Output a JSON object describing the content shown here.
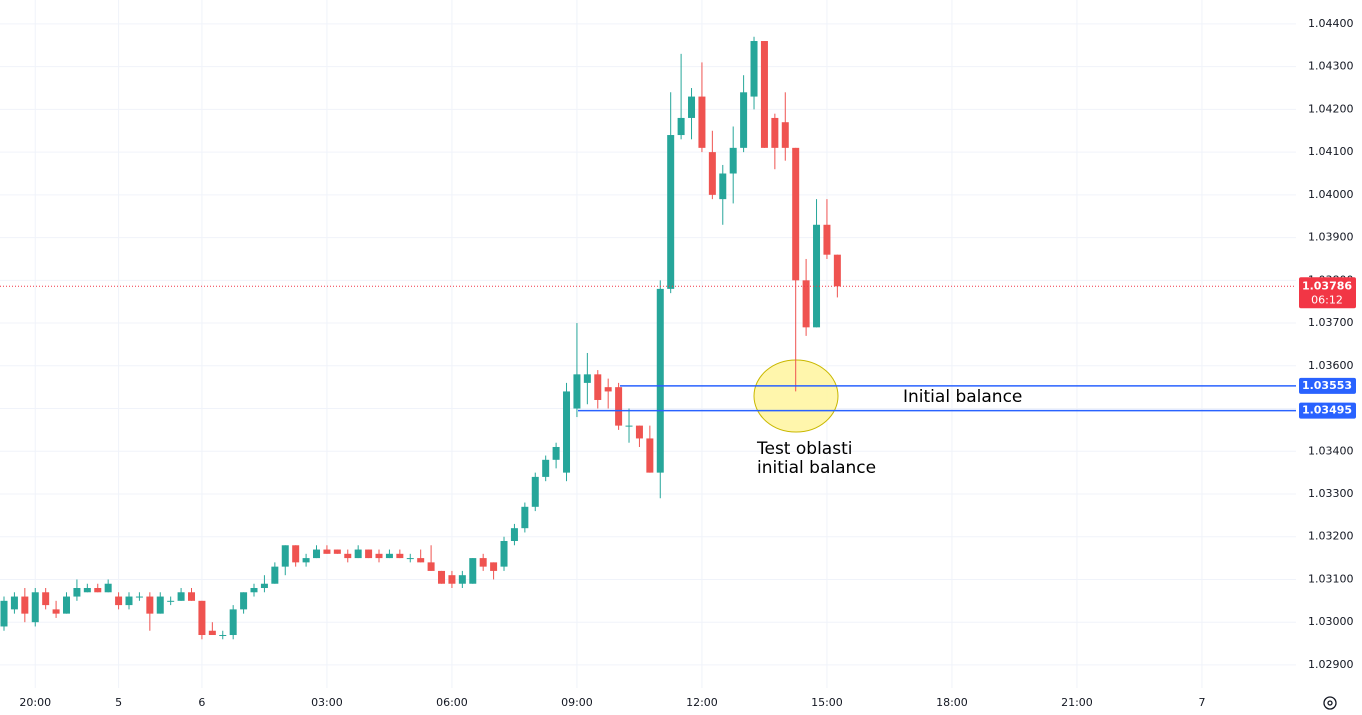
{
  "chart_data": {
    "type": "candlestick",
    "categories": [
      null,
      null,
      null,
      "20:00",
      null,
      null,
      null,
      null,
      null,
      null,
      null,
      "5",
      null,
      null,
      null,
      null,
      null,
      null,
      null,
      "6",
      null,
      null,
      null,
      null,
      null,
      null,
      null,
      null,
      null,
      null,
      null,
      "03:00",
      null,
      null,
      null,
      null,
      null,
      null,
      null,
      null,
      null,
      null,
      null,
      "06:00",
      null,
      null,
      null,
      null,
      null,
      null,
      null,
      null,
      null,
      null,
      null,
      "09:00",
      null,
      null,
      null,
      null,
      null,
      null,
      null,
      null,
      null,
      null,
      null,
      "12:00",
      null,
      null,
      null,
      null,
      null,
      null,
      null,
      null,
      null,
      null,
      null,
      "15:00",
      null,
      null,
      null,
      null,
      null,
      null,
      null,
      null,
      null,
      null,
      null,
      "18:00",
      null,
      null,
      null,
      null,
      null,
      null,
      null,
      null,
      null,
      null,
      null,
      "21:00",
      null,
      null,
      null,
      null,
      null,
      null,
      null,
      null,
      null,
      null,
      null,
      "7",
      null,
      null,
      null,
      null,
      null,
      null,
      null,
      null,
      null
    ],
    "open": [
      1.0299,
      1.0303,
      1.0306,
      1.03,
      1.0307,
      1.0303,
      1.0302,
      1.0306,
      1.0307,
      1.0308,
      1.0307,
      1.0306,
      1.0304,
      1.0306,
      1.0306,
      1.0302,
      1.0305,
      1.0305,
      1.0307,
      1.0305,
      1.0298,
      1.0297,
      1.0297,
      1.0303,
      1.0307,
      1.0308,
      1.0309,
      1.0313,
      1.0318,
      1.0314,
      1.0315,
      1.0317,
      1.0317,
      1.0316,
      1.0315,
      1.0317,
      1.0316,
      1.0315,
      1.0316,
      1.0315,
      1.0315,
      1.0314,
      1.0312,
      1.0311,
      1.0309,
      1.0309,
      1.0315,
      1.0314,
      1.0313,
      1.0319,
      1.0322,
      1.0327,
      1.0334,
      1.0338,
      1.0335,
      1.035,
      1.0356,
      1.0358,
      1.0355,
      1.0355,
      1.0346,
      1.0346,
      1.0343,
      1.0335,
      1.0378,
      1.0414,
      1.0418,
      1.0423,
      1.041,
      1.0399,
      1.0405,
      1.0411,
      1.0423,
      1.0436,
      1.0418,
      1.0417,
      1.0411,
      1.038,
      1.0369,
      1.0393,
      1.0386,
      null,
      null,
      null,
      null,
      null,
      null,
      null,
      null,
      null,
      null,
      null,
      null,
      null,
      null,
      null,
      null,
      null,
      null,
      null,
      null,
      null,
      null,
      null,
      null,
      null,
      null,
      null,
      null,
      null,
      null,
      null,
      null,
      null,
      null,
      null,
      null,
      null,
      null,
      null,
      null,
      null,
      null,
      null,
      null
    ],
    "high": [
      1.0306,
      1.0307,
      1.0308,
      1.0308,
      1.0308,
      1.0305,
      1.0307,
      1.031,
      1.0309,
      1.0309,
      1.031,
      1.0307,
      1.0307,
      1.0307,
      1.0307,
      1.0307,
      1.0306,
      1.0308,
      1.0308,
      1.0305,
      1.03,
      1.0298,
      1.0304,
      1.0307,
      1.0309,
      1.0311,
      1.0314,
      1.0318,
      1.0318,
      1.0316,
      1.0318,
      1.0318,
      1.0317,
      1.0317,
      1.0318,
      1.0317,
      1.0317,
      1.0317,
      1.0317,
      1.0316,
      1.0317,
      1.0318,
      1.0312,
      1.0312,
      1.0312,
      1.0315,
      1.0316,
      1.0314,
      1.032,
      1.0323,
      1.0328,
      1.0335,
      1.0339,
      1.0342,
      1.0356,
      1.037,
      1.0363,
      1.0359,
      1.0357,
      1.0356,
      1.035,
      1.0346,
      1.0346,
      1.038,
      1.0424,
      1.0433,
      1.0425,
      1.0431,
      1.0415,
      1.0407,
      1.0416,
      1.0428,
      1.0437,
      1.0436,
      1.0419,
      1.0424,
      1.0411,
      1.0385,
      1.0399,
      1.0399,
      1.0386,
      null,
      null,
      null,
      null,
      null,
      null,
      null,
      null,
      null,
      null,
      null,
      null,
      null,
      null,
      null,
      null,
      null,
      null,
      null,
      null,
      null,
      null,
      null,
      null,
      null,
      null,
      null,
      null,
      null,
      null,
      null,
      null,
      null,
      null,
      null,
      null,
      null,
      null,
      null,
      null,
      null,
      null,
      null,
      null
    ],
    "low": [
      1.0298,
      1.0302,
      1.03,
      1.0299,
      1.0303,
      1.0301,
      1.0302,
      1.0305,
      1.0307,
      1.0307,
      1.0307,
      1.0303,
      1.0303,
      1.0305,
      1.0298,
      1.0302,
      1.0304,
      1.0305,
      1.0305,
      1.0296,
      1.0297,
      1.0296,
      1.0296,
      1.0302,
      1.0306,
      1.0307,
      1.0309,
      1.0311,
      1.0313,
      1.0313,
      1.0315,
      1.0316,
      1.0316,
      1.0314,
      1.0315,
      1.0315,
      1.0314,
      1.0315,
      1.0315,
      1.0314,
      1.0314,
      1.0312,
      1.0309,
      1.0308,
      1.0308,
      1.0309,
      1.0312,
      1.031,
      1.0312,
      1.0318,
      1.0321,
      1.0326,
      1.0333,
      1.0336,
      1.0333,
      1.0348,
      1.0351,
      1.035,
      1.035,
      1.0345,
      1.0342,
      1.0341,
      1.0335,
      1.0329,
      1.0377,
      1.0413,
      1.0413,
      1.041,
      1.0399,
      1.0393,
      1.0398,
      1.041,
      1.042,
      1.0411,
      1.0406,
      1.0408,
      1.0354,
      1.0367,
      1.0369,
      1.0385,
      1.0376,
      null,
      null,
      null,
      null,
      null,
      null,
      null,
      null,
      null,
      null,
      null,
      null,
      null,
      null,
      null,
      null,
      null,
      null,
      null,
      null,
      null,
      null,
      null,
      null,
      null,
      null,
      null,
      null,
      null,
      null,
      null,
      null,
      null,
      null,
      null,
      null,
      null,
      null,
      null,
      null,
      null,
      null,
      null,
      null
    ],
    "close": [
      1.0305,
      1.0306,
      1.0302,
      1.0307,
      1.0304,
      1.0302,
      1.0306,
      1.0308,
      1.0308,
      1.0307,
      1.0309,
      1.0304,
      1.0306,
      1.0306,
      1.0302,
      1.0306,
      1.0305,
      1.0307,
      1.0305,
      1.0297,
      1.0297,
      1.0297,
      1.0303,
      1.0307,
      1.0308,
      1.0309,
      1.0313,
      1.0318,
      1.0314,
      1.0315,
      1.0317,
      1.0316,
      1.0316,
      1.0315,
      1.0317,
      1.0315,
      1.0315,
      1.0316,
      1.0315,
      1.0315,
      1.0314,
      1.0312,
      1.0309,
      1.0309,
      1.0311,
      1.0315,
      1.0313,
      1.0312,
      1.0319,
      1.0322,
      1.0327,
      1.0334,
      1.0338,
      1.0341,
      1.0354,
      1.0358,
      1.0358,
      1.0352,
      1.0354,
      1.0346,
      1.0346,
      1.0343,
      1.0335,
      1.0378,
      1.0414,
      1.0418,
      1.0423,
      1.0411,
      1.04,
      1.0405,
      1.0411,
      1.0424,
      1.0436,
      1.0411,
      1.0411,
      1.0411,
      1.038,
      1.0369,
      1.0393,
      1.0386,
      1.03786,
      null,
      null,
      null,
      null,
      null,
      null,
      null,
      null,
      null,
      null,
      null,
      null,
      null,
      null,
      null,
      null,
      null,
      null,
      null,
      null,
      null,
      null,
      null,
      null,
      null,
      null,
      null,
      null,
      null,
      null,
      null,
      null,
      null,
      null,
      null,
      null,
      null,
      null,
      null,
      null,
      null,
      null,
      null,
      null
    ],
    "up_color": "#26a69a",
    "down_color": "#ef5350",
    "ylim": [
      1.02846,
      1.04456
    ],
    "yticks": [
      {
        "value": 1.029,
        "label": "1.02900"
      },
      {
        "value": 1.03,
        "label": "1.03000"
      },
      {
        "value": 1.031,
        "label": "1.03100"
      },
      {
        "value": 1.032,
        "label": "1.03200"
      },
      {
        "value": 1.033,
        "label": "1.03300"
      },
      {
        "value": 1.034,
        "label": "1.03400"
      },
      {
        "value": 1.035,
        "label": "1.03500"
      },
      {
        "value": 1.036,
        "label": "1.03600"
      },
      {
        "value": 1.037,
        "label": "1.03700"
      },
      {
        "value": 1.038,
        "label": "1.03800"
      },
      {
        "value": 1.039,
        "label": "1.03900"
      },
      {
        "value": 1.04,
        "label": "1.04000"
      },
      {
        "value": 1.041,
        "label": "1.04100"
      },
      {
        "value": 1.042,
        "label": "1.04200"
      },
      {
        "value": 1.043,
        "label": "1.04300"
      },
      {
        "value": 1.044,
        "label": "1.04400"
      }
    ],
    "grid": true,
    "levels": [
      {
        "value": 1.03553,
        "color": "#2962ff"
      },
      {
        "value": 1.03495,
        "color": "#2962ff"
      }
    ],
    "price_line": {
      "value": 1.03786,
      "countdown": "06:12",
      "color": "#f23645"
    },
    "annotations": [
      "Initial balance",
      "Test oblasti",
      "initial balance"
    ]
  }
}
